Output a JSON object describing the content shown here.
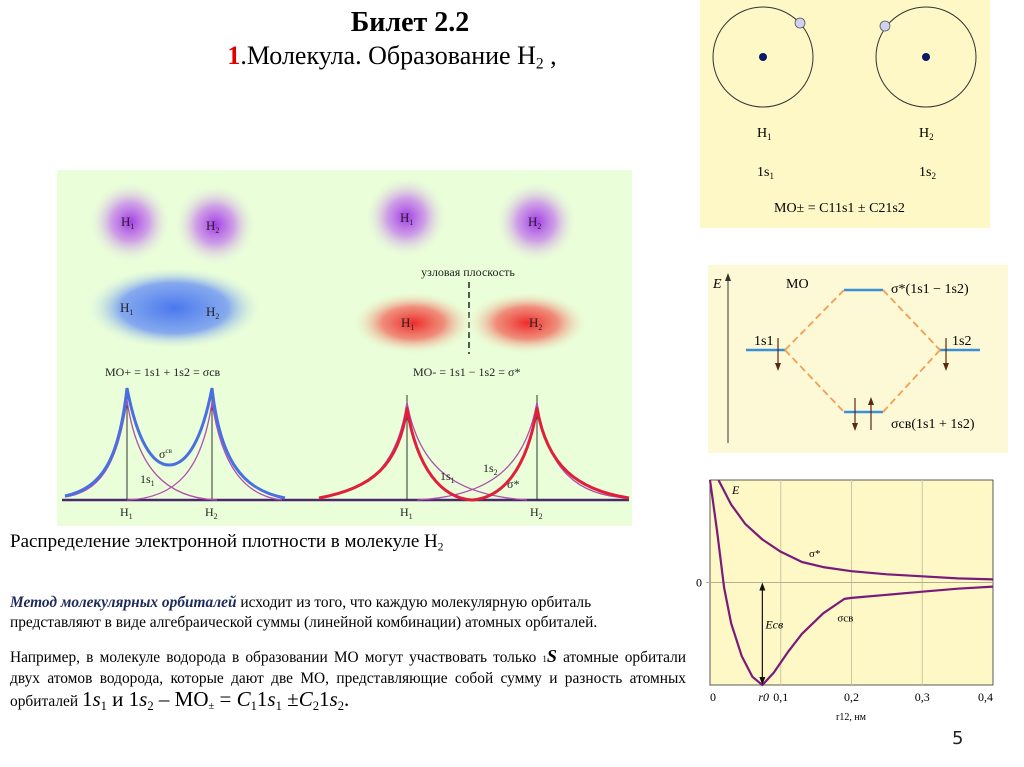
{
  "slide": {
    "title": "Билет 2.2",
    "subtitle_number": "1",
    "subtitle_text": ".Молекула. Образование H",
    "subtitle_sub": "2",
    "subtitle_tail": " ,",
    "page_number": "5"
  },
  "density_figure": {
    "left_top_atoms": [
      "H",
      "H"
    ],
    "atom_subs": [
      "1",
      "2"
    ],
    "nodal_plane_label": "узловая плоскость",
    "mo_plus_label": "MO",
    "mo_plus_sub": "+",
    "mo_plus_eq": "=  1s",
    "mo_plus_formula": "MO+ =  1s1 + 1s2  = σсв",
    "mo_minus_formula": "MO- = 1s1 − 1s2 = σ*",
    "sigma_bond": "σ",
    "sigma_bond_sup": "св",
    "sigma_star": "σ*",
    "ls1": "1s",
    "ls2": "1s",
    "h_label": "H",
    "colors": {
      "bonding": "#4a6fe0",
      "antibonding": "#e0203a",
      "atomic": "#9b3fb0",
      "background": "#eaffd9"
    }
  },
  "caption": {
    "text": "Распределение электронной плотности в молекуле H",
    "sub": "2"
  },
  "paragraph1": {
    "emph": "Метод молекулярных орбиталей",
    "line1_rest": " исходит из того, что каждую молекулярную орбиталь",
    "line2": " представляют в виде алгебраической суммы (линейной комбинации) атомных орбиталей."
  },
  "paragraph2": {
    "text_a": "Например, в молекуле водорода в образовании МО могут участвовать только ",
    "s_small": "1",
    "s_letter": "S",
    "text_b": " атомные орбитали двух атомов водорода, которые дают две МО, представляющие собой сумму и разность атомных орбиталей ",
    "f_1s": "1",
    "f_s": "s",
    "f_sub1": "1",
    "f_and": " и ",
    "f_sub2": "2",
    "f_dash": " – МО",
    "f_pm": "±",
    "f_eq": " = ",
    "f_C": "C",
    "f_pmsign": " ±",
    "f_end": "."
  },
  "atoms_diagram": {
    "h1": "H",
    "h1_sub": "1",
    "h2": "H",
    "h2_sub": "2",
    "s1": "1s",
    "s1_sub": "1",
    "s2": "1s",
    "s2_sub": "2",
    "formula": "MO± = C11s1 ± C21s2",
    "background": "#fdf8c6"
  },
  "energy_diagram": {
    "axis_label": "E",
    "mo_label": "MO",
    "sigma_star_label": "σ*(1s1 − 1s2)",
    "sigma_bond_label": "σсв(1s1 + 1s2)",
    "ao_left": "1s1",
    "ao_right": "1s2",
    "background": "#fdf8d6"
  },
  "chart_data": {
    "type": "line",
    "title": "",
    "xlabel": "r12, нм",
    "ylabel": "E",
    "xlim": [
      0,
      0.4
    ],
    "ylim": [
      -1,
      1
    ],
    "x_ticks": [
      "0",
      "0,1",
      "0,2",
      "0,3",
      "0,4"
    ],
    "y_ticks": [
      "0"
    ],
    "r0_label": "r0",
    "r0_value": 0.074,
    "binding_energy_label": "Eсв",
    "grid": true,
    "series": [
      {
        "name": "σ*",
        "x": [
          0.012,
          0.03,
          0.05,
          0.074,
          0.1,
          0.13,
          0.16,
          0.2,
          0.25,
          0.3,
          0.35,
          0.4
        ],
        "y": [
          1.0,
          0.76,
          0.57,
          0.42,
          0.3,
          0.2,
          0.15,
          0.11,
          0.08,
          0.06,
          0.04,
          0.03
        ]
      },
      {
        "name": "σсв",
        "x": [
          0.0,
          0.01,
          0.02,
          0.03,
          0.045,
          0.06,
          0.074,
          0.09,
          0.11,
          0.13,
          0.16,
          0.19,
          0.2,
          0.25,
          0.3,
          0.35,
          0.4
        ],
        "y": [
          1.0,
          0.5,
          -0.05,
          -0.4,
          -0.72,
          -0.92,
          -1.0,
          -0.88,
          -0.68,
          -0.5,
          -0.3,
          -0.16,
          -0.15,
          -0.12,
          -0.09,
          -0.06,
          -0.04
        ]
      }
    ],
    "background": "#fdf8c6",
    "line_color": "#7a1a7a"
  }
}
